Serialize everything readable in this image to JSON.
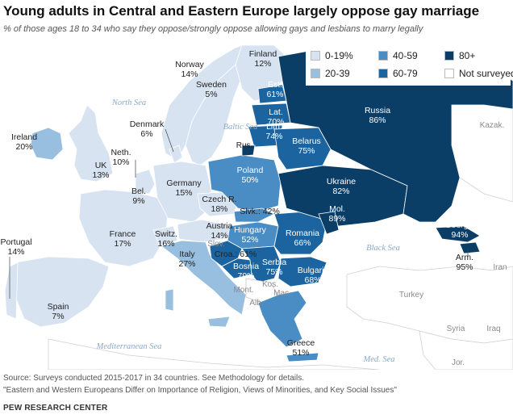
{
  "title": "Young adults in Central and Eastern Europe largely oppose gay marriage",
  "subtitle": "% of those ages 18 to 34 who say they oppose/strongly oppose allowing gays and lesbians to marry legally",
  "legend": [
    {
      "label": "0-19%",
      "color": "#d7e3f1"
    },
    {
      "label": "40-59",
      "color": "#4a8cc4"
    },
    {
      "label": "80+",
      "color": "#0b3e67"
    },
    {
      "label": "20-39",
      "color": "#98bfe0"
    },
    {
      "label": "60-79",
      "color": "#1b64a0"
    },
    {
      "label": "Not surveyed",
      "color": "#ffffff"
    }
  ],
  "countries": [
    {
      "name": "Norway",
      "value": "14%"
    },
    {
      "name": "Finland",
      "value": "12%"
    },
    {
      "name": "Sweden",
      "value": "5%"
    },
    {
      "name": "Est.",
      "value": "61%"
    },
    {
      "name": "Lat.",
      "value": "70%"
    },
    {
      "name": "Lith.",
      "value": "74%"
    },
    {
      "name": "Russia",
      "value": "86%"
    },
    {
      "name": "Denmark",
      "value": "6%"
    },
    {
      "name": "Ireland",
      "value": "20%"
    },
    {
      "name": "Belarus",
      "value": "75%"
    },
    {
      "name": "Neth.",
      "value": "10%"
    },
    {
      "name": "UK",
      "value": "13%"
    },
    {
      "name": "Poland",
      "value": "50%"
    },
    {
      "name": "Bel.",
      "value": "9%"
    },
    {
      "name": "Germany",
      "value": "15%"
    },
    {
      "name": "Ukraine",
      "value": "82%"
    },
    {
      "name": "Czech R.",
      "value": "18%"
    },
    {
      "name": "Slvk.",
      "value": "42%"
    },
    {
      "name": "Mol.",
      "value": "89%"
    },
    {
      "name": "Austria",
      "value": "14%"
    },
    {
      "name": "France",
      "value": "17%"
    },
    {
      "name": "Switz.",
      "value": "16%"
    },
    {
      "name": "Hungary",
      "value": "52%"
    },
    {
      "name": "Romania",
      "value": "66%"
    },
    {
      "name": "Georgia",
      "value": "94%"
    },
    {
      "name": "Portugal",
      "value": "14%"
    },
    {
      "name": "Italy",
      "value": "27%"
    },
    {
      "name": "Croa.",
      "value": "61%"
    },
    {
      "name": "Serbia",
      "value": "75%"
    },
    {
      "name": "Bosnia",
      "value": "79%"
    },
    {
      "name": "Bulgaria",
      "value": "68%"
    },
    {
      "name": "Arm.",
      "value": "95%"
    },
    {
      "name": "Spain",
      "value": "7%"
    },
    {
      "name": "Greece",
      "value": "51%"
    }
  ],
  "unlabeled_countries": [
    "Slov.",
    "Rus.",
    "Mont.",
    "Kos.",
    "Alb.",
    "Mac."
  ],
  "seas": [
    "North Sea",
    "Baltic Sea",
    "Black Sea",
    "Mediterranean Sea",
    "Med. Sea"
  ],
  "other_places": [
    "Kazak.",
    "Turkey",
    "Iran",
    "Syria",
    "Iraq",
    "Jor."
  ],
  "source": "Source: Surveys conducted 2015-2017 in 34 countries. See Methodology for details.",
  "report": "\"Eastern and Western Europeans Differ on Importance of Religion, Views of Minorities, and Key Social Issues\"",
  "brand": "PEW RESEARCH CENTER"
}
